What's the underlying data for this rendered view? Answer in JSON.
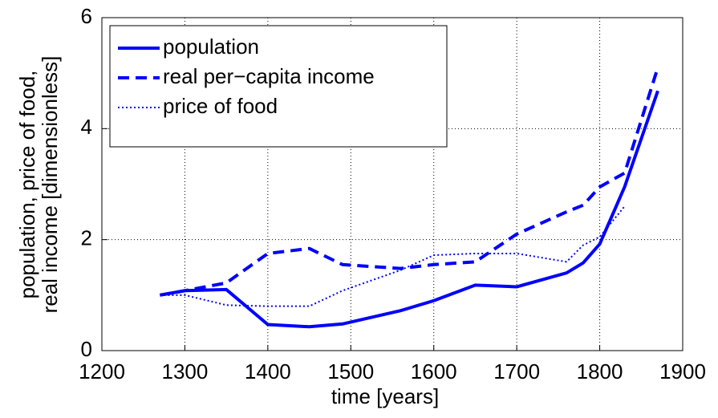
{
  "chart_data": {
    "type": "line",
    "xlabel": "time [years]",
    "ylabel": [
      "population, price of food,",
      "real income [dimensionless]"
    ],
    "x": [
      1270,
      1300,
      1350,
      1400,
      1450,
      1490,
      1560,
      1600,
      1650,
      1700,
      1760,
      1780,
      1800,
      1830,
      1870
    ],
    "series": [
      {
        "name": "population",
        "color": "#0000ff",
        "linestyle": "solid",
        "values": [
          1.0,
          1.08,
          1.1,
          0.47,
          0.43,
          0.48,
          0.72,
          0.9,
          1.18,
          1.15,
          1.4,
          1.58,
          1.92,
          2.95,
          4.68
        ]
      },
      {
        "name": "real per−capita income",
        "color": "#0000ff",
        "linestyle": "dashed",
        "values": [
          1.0,
          1.08,
          1.22,
          1.75,
          1.84,
          1.55,
          1.48,
          1.55,
          1.6,
          2.1,
          2.5,
          2.62,
          2.95,
          3.2,
          5.1
        ]
      },
      {
        "name": "price of food",
        "color": "#0000ff",
        "linestyle": "dotted",
        "values": [
          1.0,
          1.0,
          0.82,
          0.8,
          0.8,
          1.08,
          1.45,
          1.72,
          1.75,
          1.75,
          1.6,
          1.9,
          2.05,
          2.6,
          null
        ]
      }
    ],
    "xlim": [
      1200,
      1900
    ],
    "xticks": [
      1200,
      1300,
      1400,
      1500,
      1600,
      1700,
      1800,
      1900
    ],
    "ylim": [
      0,
      6
    ],
    "yticks": [
      0,
      2,
      4,
      6
    ],
    "grid": true,
    "legend": "upper-left"
  }
}
